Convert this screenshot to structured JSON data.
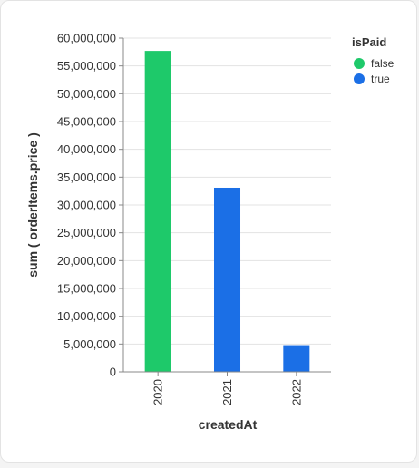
{
  "chart_data": {
    "type": "bar",
    "categories": [
      "2020",
      "2021",
      "2022"
    ],
    "xlabel": "createdAt",
    "ylabel": "sum ( orderItems.price )",
    "ylim": [
      0,
      60000000
    ],
    "yticks": [
      {
        "value": 0,
        "label": "0"
      },
      {
        "value": 5000000,
        "label": "5,000,000"
      },
      {
        "value": 10000000,
        "label": "10,000,000"
      },
      {
        "value": 15000000,
        "label": "15,000,000"
      },
      {
        "value": 20000000,
        "label": "20,000,000"
      },
      {
        "value": 25000000,
        "label": "25,000,000"
      },
      {
        "value": 30000000,
        "label": "30,000,000"
      },
      {
        "value": 35000000,
        "label": "35,000,000"
      },
      {
        "value": 40000000,
        "label": "40,000,000"
      },
      {
        "value": 45000000,
        "label": "45,000,000"
      },
      {
        "value": 50000000,
        "label": "50,000,000"
      },
      {
        "value": 55000000,
        "label": "55,000,000"
      },
      {
        "value": 60000000,
        "label": "60,000,000"
      }
    ],
    "grid": true,
    "legend": {
      "title": "isPaid",
      "position": "top-right",
      "entries": [
        {
          "label": "false",
          "color": "#1ec96a"
        },
        {
          "label": "true",
          "color": "#1b6fe6"
        }
      ]
    },
    "series": [
      {
        "name": "false",
        "color": "#1ec96a",
        "values": [
          57700000,
          null,
          null
        ]
      },
      {
        "name": "true",
        "color": "#1b6fe6",
        "values": [
          null,
          33100000,
          4800000
        ]
      }
    ]
  }
}
